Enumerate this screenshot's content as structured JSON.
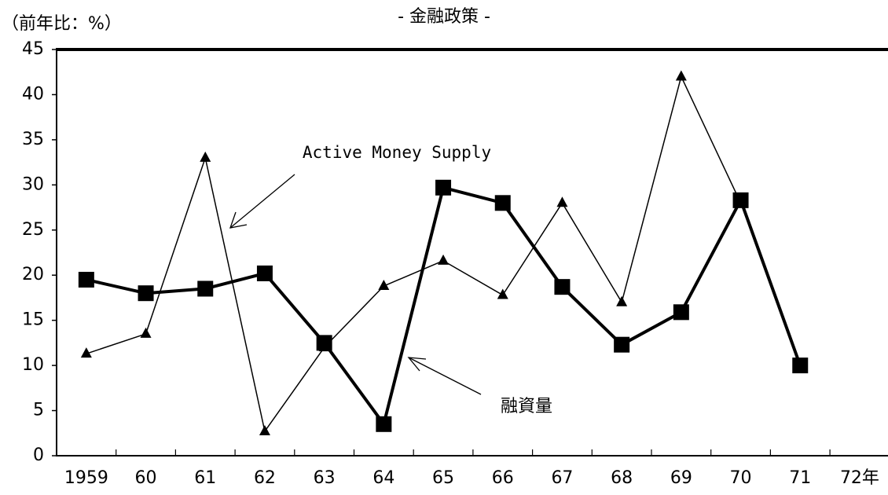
{
  "chart_data": {
    "type": "line",
    "title": "- 金融政策 -",
    "y_axis_label": "（前年比：%）",
    "categories": [
      "1959",
      "60",
      "61",
      "62",
      "63",
      "64",
      "65",
      "66",
      "67",
      "68",
      "69",
      "70",
      "71",
      "72年"
    ],
    "series": [
      {
        "name": "Active Money Supply",
        "color": "#000000",
        "marker": "triangle",
        "values": [
          11.3,
          13.5,
          33,
          2.7,
          12,
          18.8,
          21.6,
          17.8,
          28,
          17,
          42,
          28,
          null,
          null
        ]
      },
      {
        "name": "融資量",
        "color": "#000000",
        "marker": "square",
        "values": [
          19.5,
          18,
          18.5,
          20.2,
          12.5,
          3.5,
          29.7,
          28,
          18.7,
          12.3,
          15.9,
          28.3,
          10,
          null
        ]
      }
    ],
    "ylim": [
      0,
      45
    ],
    "yticks": [
      0,
      5,
      10,
      15,
      20,
      25,
      30,
      35,
      40,
      45
    ]
  }
}
